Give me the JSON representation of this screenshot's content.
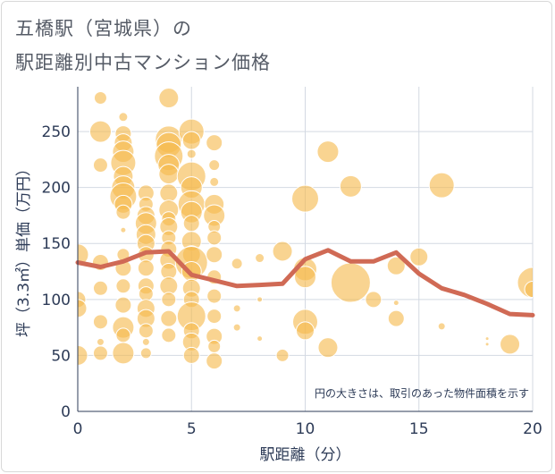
{
  "title_line1": "五橋駅（宮城県）の",
  "title_line2": "駅距離別中古マンション価格",
  "chart_data": {
    "type": "scatter",
    "xlabel": "駅距離（分）",
    "ylabel": "坪（3.3㎡）単価（万円）",
    "xlim": [
      0,
      20
    ],
    "ylim": [
      0,
      290
    ],
    "xticks": [
      "0",
      "5",
      "10",
      "15",
      "20"
    ],
    "yticks": [
      "0",
      "50",
      "100",
      "150",
      "200",
      "250"
    ],
    "grid": true,
    "note": "円の大きさは、取引のあった物件面積を示す",
    "bubble_color": "#f5b94d",
    "line_color": "#d06a55",
    "bubbles": [
      {
        "x": 0,
        "y": 140,
        "s": 12
      },
      {
        "x": 0,
        "y": 100,
        "s": 9
      },
      {
        "x": 0,
        "y": 92,
        "s": 10
      },
      {
        "x": 0,
        "y": 50,
        "s": 11
      },
      {
        "x": 1,
        "y": 280,
        "s": 7
      },
      {
        "x": 1,
        "y": 250,
        "s": 12
      },
      {
        "x": 1,
        "y": 220,
        "s": 8
      },
      {
        "x": 1,
        "y": 133,
        "s": 9
      },
      {
        "x": 1,
        "y": 110,
        "s": 8
      },
      {
        "x": 1,
        "y": 80,
        "s": 8
      },
      {
        "x": 1,
        "y": 62,
        "s": 4
      },
      {
        "x": 1,
        "y": 52,
        "s": 8
      },
      {
        "x": 2,
        "y": 263,
        "s": 5
      },
      {
        "x": 2,
        "y": 248,
        "s": 9
      },
      {
        "x": 2,
        "y": 240,
        "s": 10
      },
      {
        "x": 2,
        "y": 232,
        "s": 12
      },
      {
        "x": 2,
        "y": 222,
        "s": 14
      },
      {
        "x": 2,
        "y": 210,
        "s": 11
      },
      {
        "x": 2,
        "y": 200,
        "s": 13
      },
      {
        "x": 2,
        "y": 192,
        "s": 15
      },
      {
        "x": 2,
        "y": 185,
        "s": 10
      },
      {
        "x": 2,
        "y": 178,
        "s": 8
      },
      {
        "x": 2,
        "y": 162,
        "s": 3
      },
      {
        "x": 2,
        "y": 140,
        "s": 7
      },
      {
        "x": 2,
        "y": 128,
        "s": 9
      },
      {
        "x": 2,
        "y": 112,
        "s": 8
      },
      {
        "x": 2,
        "y": 95,
        "s": 9
      },
      {
        "x": 2,
        "y": 75,
        "s": 12
      },
      {
        "x": 2,
        "y": 68,
        "s": 8
      },
      {
        "x": 2,
        "y": 52,
        "s": 12
      },
      {
        "x": 3,
        "y": 195,
        "s": 9
      },
      {
        "x": 3,
        "y": 185,
        "s": 8
      },
      {
        "x": 3,
        "y": 175,
        "s": 10
      },
      {
        "x": 3,
        "y": 168,
        "s": 12
      },
      {
        "x": 3,
        "y": 158,
        "s": 11
      },
      {
        "x": 3,
        "y": 150,
        "s": 10
      },
      {
        "x": 3,
        "y": 140,
        "s": 9
      },
      {
        "x": 3,
        "y": 128,
        "s": 9
      },
      {
        "x": 3,
        "y": 112,
        "s": 9
      },
      {
        "x": 3,
        "y": 105,
        "s": 8
      },
      {
        "x": 3,
        "y": 92,
        "s": 10
      },
      {
        "x": 3,
        "y": 83,
        "s": 10
      },
      {
        "x": 3,
        "y": 72,
        "s": 8
      },
      {
        "x": 3,
        "y": 62,
        "s": 4
      },
      {
        "x": 3,
        "y": 52,
        "s": 6
      },
      {
        "x": 4,
        "y": 280,
        "s": 11
      },
      {
        "x": 4,
        "y": 243,
        "s": 15
      },
      {
        "x": 4,
        "y": 238,
        "s": 14
      },
      {
        "x": 4,
        "y": 228,
        "s": 16
      },
      {
        "x": 4,
        "y": 220,
        "s": 12
      },
      {
        "x": 4,
        "y": 212,
        "s": 11
      },
      {
        "x": 4,
        "y": 195,
        "s": 10
      },
      {
        "x": 4,
        "y": 180,
        "s": 11
      },
      {
        "x": 4,
        "y": 172,
        "s": 8
      },
      {
        "x": 4,
        "y": 165,
        "s": 10
      },
      {
        "x": 4,
        "y": 155,
        "s": 8
      },
      {
        "x": 4,
        "y": 145,
        "s": 9
      },
      {
        "x": 4,
        "y": 135,
        "s": 10
      },
      {
        "x": 4,
        "y": 125,
        "s": 9
      },
      {
        "x": 4,
        "y": 112,
        "s": 10
      },
      {
        "x": 4,
        "y": 100,
        "s": 8
      },
      {
        "x": 4,
        "y": 83,
        "s": 9
      },
      {
        "x": 4,
        "y": 68,
        "s": 8
      },
      {
        "x": 5,
        "y": 250,
        "s": 14
      },
      {
        "x": 5,
        "y": 242,
        "s": 10
      },
      {
        "x": 5,
        "y": 230,
        "s": 5
      },
      {
        "x": 5,
        "y": 210,
        "s": 16
      },
      {
        "x": 5,
        "y": 200,
        "s": 12
      },
      {
        "x": 5,
        "y": 185,
        "s": 15
      },
      {
        "x": 5,
        "y": 178,
        "s": 12
      },
      {
        "x": 5,
        "y": 168,
        "s": 9
      },
      {
        "x": 5,
        "y": 152,
        "s": 11
      },
      {
        "x": 5,
        "y": 140,
        "s": 10
      },
      {
        "x": 5,
        "y": 133,
        "s": 18
      },
      {
        "x": 5,
        "y": 125,
        "s": 11
      },
      {
        "x": 5,
        "y": 110,
        "s": 10
      },
      {
        "x": 5,
        "y": 100,
        "s": 9
      },
      {
        "x": 5,
        "y": 85,
        "s": 16
      },
      {
        "x": 5,
        "y": 72,
        "s": 9
      },
      {
        "x": 5,
        "y": 62,
        "s": 10
      },
      {
        "x": 5,
        "y": 50,
        "s": 9
      },
      {
        "x": 6,
        "y": 240,
        "s": 9
      },
      {
        "x": 6,
        "y": 220,
        "s": 6
      },
      {
        "x": 6,
        "y": 205,
        "s": 5
      },
      {
        "x": 6,
        "y": 185,
        "s": 11
      },
      {
        "x": 6,
        "y": 175,
        "s": 12
      },
      {
        "x": 6,
        "y": 165,
        "s": 7
      },
      {
        "x": 6,
        "y": 155,
        "s": 8
      },
      {
        "x": 6,
        "y": 140,
        "s": 9
      },
      {
        "x": 6,
        "y": 120,
        "s": 8
      },
      {
        "x": 6,
        "y": 103,
        "s": 8
      },
      {
        "x": 6,
        "y": 85,
        "s": 8
      },
      {
        "x": 6,
        "y": 67,
        "s": 9
      },
      {
        "x": 6,
        "y": 58,
        "s": 7
      },
      {
        "x": 6,
        "y": 45,
        "s": 9
      },
      {
        "x": 7,
        "y": 132,
        "s": 6
      },
      {
        "x": 7,
        "y": 92,
        "s": 4
      },
      {
        "x": 7,
        "y": 75,
        "s": 4
      },
      {
        "x": 8,
        "y": 137,
        "s": 5
      },
      {
        "x": 8,
        "y": 100,
        "s": 3
      },
      {
        "x": 8,
        "y": 65,
        "s": 3
      },
      {
        "x": 9,
        "y": 143,
        "s": 11
      },
      {
        "x": 9,
        "y": 50,
        "s": 7
      },
      {
        "x": 10,
        "y": 190,
        "s": 15
      },
      {
        "x": 10,
        "y": 127,
        "s": 13
      },
      {
        "x": 10,
        "y": 120,
        "s": 12
      },
      {
        "x": 10,
        "y": 80,
        "s": 14
      },
      {
        "x": 10,
        "y": 72,
        "s": 10
      },
      {
        "x": 11,
        "y": 232,
        "s": 12
      },
      {
        "x": 11,
        "y": 57,
        "s": 11
      },
      {
        "x": 12,
        "y": 201,
        "s": 12
      },
      {
        "x": 12,
        "y": 115,
        "s": 22
      },
      {
        "x": 13,
        "y": 100,
        "s": 9
      },
      {
        "x": 14,
        "y": 130,
        "s": 10
      },
      {
        "x": 14,
        "y": 97,
        "s": 3
      },
      {
        "x": 14,
        "y": 83,
        "s": 9
      },
      {
        "x": 15,
        "y": 138,
        "s": 10
      },
      {
        "x": 16,
        "y": 202,
        "s": 14
      },
      {
        "x": 16,
        "y": 76,
        "s": 4
      },
      {
        "x": 18,
        "y": 65,
        "s": 2
      },
      {
        "x": 18,
        "y": 60,
        "s": 2
      },
      {
        "x": 19,
        "y": 60,
        "s": 11
      },
      {
        "x": 20,
        "y": 115,
        "s": 17
      },
      {
        "x": 20,
        "y": 109,
        "s": 9
      }
    ],
    "series": [
      {
        "x": [
          0,
          1,
          2,
          3,
          4,
          5,
          6,
          7,
          8,
          9,
          10,
          11,
          12,
          13,
          14,
          15,
          16,
          17,
          18,
          19,
          20
        ],
        "values": [
          133,
          129,
          134,
          142,
          143,
          122,
          117,
          112,
          113,
          114,
          136,
          144,
          134,
          134,
          142,
          123,
          110,
          104,
          96,
          87,
          86
        ]
      }
    ]
  }
}
